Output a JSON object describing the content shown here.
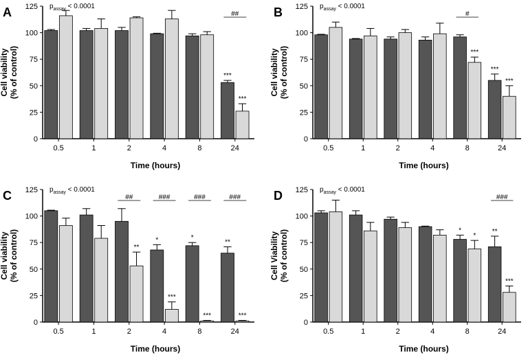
{
  "chart_data": [
    {
      "type": "bar",
      "panel": "A",
      "p_label": "p",
      "p_sub": "assay",
      "p_value": " < 0.0001",
      "xlabel": "Time (hours)",
      "ylabel_line1": "Cell viability",
      "ylabel_line2": "(% of control)",
      "ylim": [
        0,
        125
      ],
      "yticks": [
        0,
        25,
        50,
        75,
        100,
        125
      ],
      "categories": [
        "0.5",
        "1",
        "2",
        "4",
        "8",
        "24"
      ],
      "series": [
        {
          "name": "dark",
          "color": "#555555",
          "values": [
            102,
            102,
            102,
            99,
            97,
            53
          ],
          "errors": [
            1,
            2,
            3,
            0.5,
            2,
            2
          ],
          "sig": [
            "",
            "",
            "",
            "",
            "",
            "***"
          ]
        },
        {
          "name": "light",
          "color": "#d9d9d9",
          "values": [
            116,
            104,
            114,
            113,
            98,
            26
          ],
          "errors": [
            5,
            9,
            1,
            8,
            3,
            7
          ],
          "sig": [
            "",
            "",
            "",
            "",
            "",
            "***"
          ]
        }
      ],
      "hash": [
        {
          "category": "24",
          "text": "##"
        }
      ]
    },
    {
      "type": "bar",
      "panel": "B",
      "p_label": "p",
      "p_sub": "assay",
      "p_value": " < 0.0001",
      "xlabel": "Time (hours)",
      "ylabel_line1": "Cell viability",
      "ylabel_line2": "(% of control)",
      "ylim": [
        0,
        125
      ],
      "yticks": [
        0,
        25,
        50,
        75,
        100,
        125
      ],
      "categories": [
        "0.5",
        "1",
        "2",
        "4",
        "8",
        "24"
      ],
      "series": [
        {
          "name": "dark",
          "color": "#555555",
          "values": [
            98,
            94,
            94,
            93,
            96,
            55
          ],
          "errors": [
            0.5,
            0.5,
            2,
            3,
            2,
            6
          ],
          "sig": [
            "",
            "",
            "",
            "",
            "",
            "***"
          ]
        },
        {
          "name": "light",
          "color": "#d9d9d9",
          "values": [
            105,
            97,
            100,
            99,
            72,
            40
          ],
          "errors": [
            5,
            7,
            3,
            10,
            5,
            10
          ],
          "sig": [
            "",
            "",
            "",
            "",
            "***",
            "***"
          ]
        }
      ],
      "hash": [
        {
          "category": "8",
          "text": "#"
        }
      ]
    },
    {
      "type": "bar",
      "panel": "C",
      "p_label": "p",
      "p_sub": "assay",
      "p_value": " < 0.0001",
      "xlabel": "Time (hours)",
      "ylabel_line1": "Cell viability",
      "ylabel_line2": "(% of control)",
      "ylim": [
        0,
        125
      ],
      "yticks": [
        0,
        25,
        50,
        75,
        100,
        125
      ],
      "categories": [
        "0.5",
        "1",
        "2",
        "4",
        "8",
        "24"
      ],
      "series": [
        {
          "name": "dark",
          "color": "#555555",
          "values": [
            105,
            101,
            95,
            68,
            72,
            65
          ],
          "errors": [
            0.5,
            6,
            12,
            5,
            3,
            6
          ],
          "sig": [
            "",
            "",
            "",
            "*",
            "*",
            "**"
          ]
        },
        {
          "name": "light",
          "color": "#d9d9d9",
          "values": [
            91,
            79,
            53,
            12,
            1,
            1
          ],
          "errors": [
            7,
            12,
            13,
            7,
            0.5,
            0.5
          ],
          "sig": [
            "",
            "",
            "**",
            "***",
            "***",
            "***"
          ]
        }
      ],
      "hash": [
        {
          "category": "2",
          "text": "##"
        },
        {
          "category": "4",
          "text": "###"
        },
        {
          "category": "8",
          "text": "###"
        },
        {
          "category": "24",
          "text": "###"
        }
      ]
    },
    {
      "type": "bar",
      "panel": "D",
      "p_label": "p",
      "p_sub": "assay",
      "p_value": " < 0.0001",
      "xlabel": "Time (hours)",
      "ylabel_line1": "Cell Viability",
      "ylabel_line2": "(% of control)",
      "ylim": [
        0,
        125
      ],
      "yticks": [
        0,
        25,
        50,
        75,
        100,
        125
      ],
      "categories": [
        "0.5",
        "1",
        "2",
        "4",
        "8",
        "24"
      ],
      "series": [
        {
          "name": "dark",
          "color": "#555555",
          "values": [
            103,
            101,
            97,
            90,
            78,
            71
          ],
          "errors": [
            2,
            4,
            2,
            0.5,
            4,
            10
          ],
          "sig": [
            "",
            "",
            "",
            "",
            "*",
            "**"
          ]
        },
        {
          "name": "light",
          "color": "#d9d9d9",
          "values": [
            104,
            86,
            89,
            82,
            69,
            28
          ],
          "errors": [
            11,
            8,
            5,
            5,
            8,
            6
          ],
          "sig": [
            "",
            "",
            "",
            "",
            "*",
            "***"
          ]
        }
      ],
      "hash": [
        {
          "category": "24",
          "text": "###"
        }
      ]
    }
  ]
}
